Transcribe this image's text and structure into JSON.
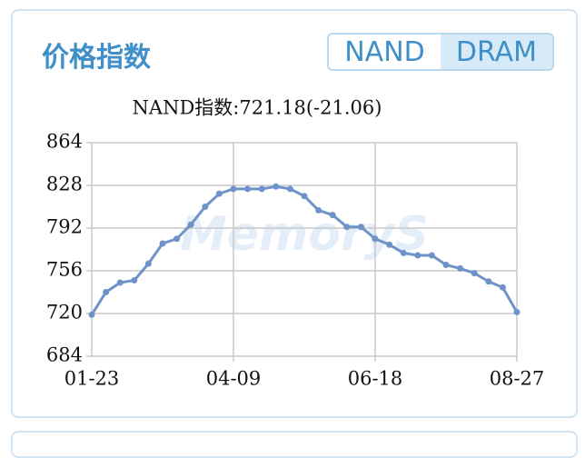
{
  "header": {
    "title": "价格指数",
    "tabs": [
      "NAND",
      "DRAM"
    ],
    "active_tab": 0
  },
  "watermark": "MemoryS",
  "chart_data": {
    "type": "line",
    "title": "NAND指数:721.18(-21.06)",
    "categories": [
      "01-23",
      null,
      null,
      null,
      null,
      null,
      null,
      null,
      null,
      null,
      "04-09",
      null,
      null,
      null,
      null,
      null,
      null,
      null,
      null,
      null,
      "06-18",
      null,
      null,
      null,
      null,
      null,
      null,
      null,
      null,
      null,
      "08-27"
    ],
    "series": [
      {
        "name": "NAND",
        "color": "#6f93c8",
        "values": [
          719,
          738,
          746,
          748,
          762,
          779,
          783,
          795,
          810,
          821,
          825,
          825,
          825,
          827,
          825,
          819,
          807,
          803,
          793,
          793,
          783,
          778,
          771,
          769,
          769,
          761,
          758,
          754,
          747,
          742,
          721.18
        ]
      }
    ],
    "ylim": [
      684,
      864
    ],
    "yticks": [
      684,
      720,
      756,
      792,
      828,
      864
    ],
    "grid": true
  }
}
